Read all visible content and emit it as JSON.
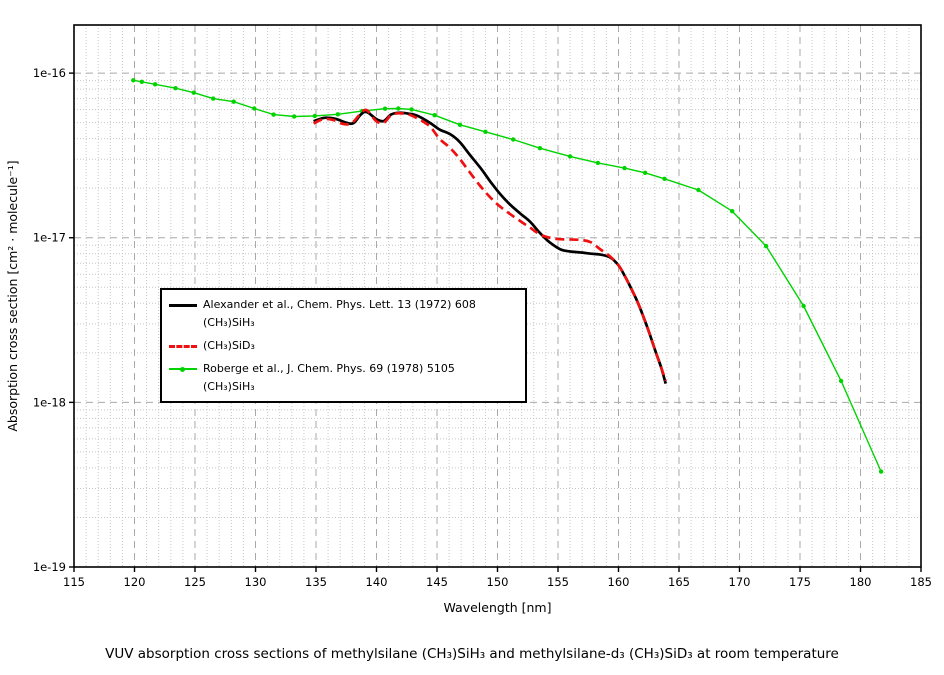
{
  "figure": {
    "caption": "VUV absorption cross sections of methylsilane (CH₃)SiH₃ and methylsilane-d₃ (CH₃)SiD₃ at room temperature"
  },
  "chart_data": {
    "type": "line",
    "title": "",
    "xlabel": "Wavelength [nm]",
    "ylabel": "Absorption cross section [cm² · molecule⁻¹]",
    "x_axis_range": [
      115,
      185
    ],
    "y_axis_range": [
      1e-19,
      1.96e-16
    ],
    "y_scale": "log",
    "grid": {
      "major": true,
      "minor": true,
      "major_color": "#a9a9a9",
      "minor_color": "#c7c7c7"
    },
    "x_ticks": [
      115,
      120,
      125,
      130,
      135,
      140,
      145,
      150,
      155,
      160,
      165,
      170,
      175,
      180,
      185
    ],
    "y_ticks": [
      {
        "label": "1e-16",
        "value": 1e-16
      },
      {
        "label": "1e-17",
        "value": 1e-17
      },
      {
        "label": "1e-18",
        "value": 1e-18
      },
      {
        "label": "1e-19",
        "value": 1e-19
      }
    ],
    "legend_position": "inside-center-left",
    "series": [
      {
        "name": "Alexander et al., Chem. Phys. Lett. 13 (1972) 608",
        "formula": "(CH₃)SiH₃",
        "color": "#000000",
        "line_style": "solid",
        "line_width": 2.7,
        "marker": "none",
        "points": [
          [
            134.8,
            5.1e-17
          ],
          [
            135.7,
            5.35e-17
          ],
          [
            136.6,
            5.28e-17
          ],
          [
            137.5,
            5e-17
          ],
          [
            138.1,
            4.97e-17
          ],
          [
            138.7,
            5.6e-17
          ],
          [
            139.2,
            5.8e-17
          ],
          [
            140.0,
            5.25e-17
          ],
          [
            140.6,
            5.12e-17
          ],
          [
            141.2,
            5.6e-17
          ],
          [
            141.9,
            5.75e-17
          ],
          [
            142.6,
            5.68e-17
          ],
          [
            143.4,
            5.5e-17
          ],
          [
            144.4,
            5e-17
          ],
          [
            145.2,
            4.55e-17
          ],
          [
            146.1,
            4.25e-17
          ],
          [
            146.9,
            3.8e-17
          ],
          [
            147.7,
            3.2e-17
          ],
          [
            148.6,
            2.65e-17
          ],
          [
            149.4,
            2.2e-17
          ],
          [
            150.2,
            1.85e-17
          ],
          [
            151.0,
            1.6e-17
          ],
          [
            151.9,
            1.4e-17
          ],
          [
            152.7,
            1.25e-17
          ],
          [
            153.5,
            1.07e-17
          ],
          [
            154.3,
            9.4e-18
          ],
          [
            155.2,
            8.5e-18
          ],
          [
            156.0,
            8.25e-18
          ],
          [
            156.8,
            8.15e-18
          ],
          [
            157.7,
            8e-18
          ],
          [
            158.5,
            7.9e-18
          ],
          [
            159.3,
            7.6e-18
          ],
          [
            160.0,
            6.8e-18
          ],
          [
            160.5,
            5.9e-18
          ],
          [
            161.0,
            5e-18
          ],
          [
            161.5,
            4.2e-18
          ],
          [
            162.0,
            3.4e-18
          ],
          [
            162.5,
            2.7e-18
          ],
          [
            163.0,
            2.1e-18
          ],
          [
            163.5,
            1.65e-18
          ],
          [
            163.9,
            1.3e-18
          ]
        ]
      },
      {
        "name": "(CH₃)SiD₃",
        "formula": "",
        "color": "#ee1111",
        "line_style": "dashed",
        "line_width": 2.7,
        "marker": "none",
        "points": [
          [
            134.8,
            4.95e-17
          ],
          [
            135.6,
            5.25e-17
          ],
          [
            136.4,
            5.2e-17
          ],
          [
            137.3,
            4.9e-17
          ],
          [
            138.0,
            5e-17
          ],
          [
            138.7,
            5.7e-17
          ],
          [
            139.2,
            5.95e-17
          ],
          [
            140.0,
            5.1e-17
          ],
          [
            140.6,
            5e-17
          ],
          [
            141.2,
            5.55e-17
          ],
          [
            141.8,
            5.7e-17
          ],
          [
            142.6,
            5.62e-17
          ],
          [
            143.4,
            5.3e-17
          ],
          [
            144.4,
            4.75e-17
          ],
          [
            145.2,
            4e-17
          ],
          [
            146.1,
            3.5e-17
          ],
          [
            146.9,
            3e-17
          ],
          [
            147.7,
            2.5e-17
          ],
          [
            148.6,
            2.05e-17
          ],
          [
            149.4,
            1.76e-17
          ],
          [
            150.2,
            1.55e-17
          ],
          [
            151.0,
            1.4e-17
          ],
          [
            151.9,
            1.26e-17
          ],
          [
            152.7,
            1.15e-17
          ],
          [
            153.5,
            1.05e-17
          ],
          [
            154.3,
            1e-17
          ],
          [
            155.2,
            9.8e-18
          ],
          [
            156.8,
            9.7e-18
          ],
          [
            157.7,
            9.4e-18
          ],
          [
            158.5,
            8.5e-18
          ],
          [
            159.3,
            7.7e-18
          ],
          [
            160.0,
            6.8e-18
          ],
          [
            160.5,
            5.9e-18
          ],
          [
            161.0,
            5e-18
          ],
          [
            161.5,
            4.2e-18
          ],
          [
            162.0,
            3.4e-18
          ],
          [
            162.5,
            2.7e-18
          ],
          [
            163.0,
            2.1e-18
          ],
          [
            163.5,
            1.65e-18
          ],
          [
            163.9,
            1.35e-18
          ]
        ]
      },
      {
        "name": "Roberge et al., J. Chem. Phys. 69 (1978) 5105",
        "formula": "(CH₃)SiH₃",
        "color": "#00d300",
        "line_style": "solid",
        "line_width": 1.4,
        "marker": "dot",
        "points": [
          [
            119.9,
            9.05e-17
          ],
          [
            120.6,
            8.85e-17
          ],
          [
            121.7,
            8.55e-17
          ],
          [
            123.4,
            8.1e-17
          ],
          [
            124.9,
            7.6e-17
          ],
          [
            126.5,
            7e-17
          ],
          [
            128.2,
            6.7e-17
          ],
          [
            129.9,
            6.1e-17
          ],
          [
            131.5,
            5.6e-17
          ],
          [
            133.2,
            5.45e-17
          ],
          [
            134.9,
            5.5e-17
          ],
          [
            136.8,
            5.62e-17
          ],
          [
            138.8,
            5.88e-17
          ],
          [
            140.7,
            6.08e-17
          ],
          [
            141.8,
            6.1e-17
          ],
          [
            142.9,
            6.02e-17
          ],
          [
            144.8,
            5.55e-17
          ],
          [
            146.9,
            4.85e-17
          ],
          [
            149.0,
            4.4e-17
          ],
          [
            151.3,
            3.95e-17
          ],
          [
            153.5,
            3.5e-17
          ],
          [
            156.0,
            3.12e-17
          ],
          [
            158.3,
            2.85e-17
          ],
          [
            160.5,
            2.65e-17
          ],
          [
            162.2,
            2.48e-17
          ],
          [
            163.8,
            2.28e-17
          ],
          [
            166.6,
            1.95e-17
          ],
          [
            169.4,
            1.45e-17
          ],
          [
            172.2,
            8.9e-18
          ],
          [
            175.3,
            3.85e-18
          ],
          [
            178.4,
            1.35e-18
          ],
          [
            181.7,
            3.8e-19
          ]
        ]
      }
    ]
  }
}
